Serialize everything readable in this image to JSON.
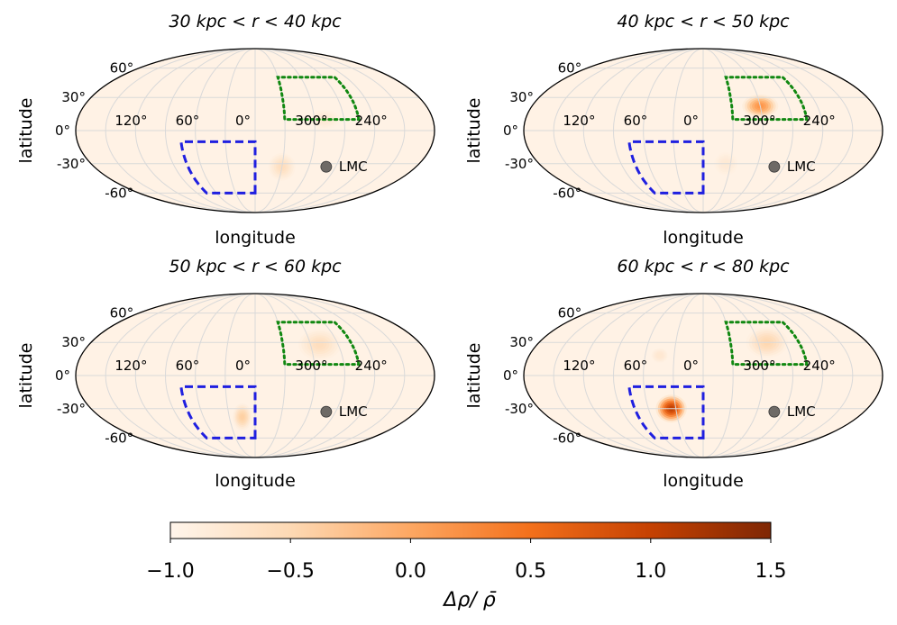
{
  "chart_data": {
    "type": "heatmap",
    "projection": "mollweide",
    "colormap": "Oranges",
    "panels": [
      {
        "title": "30 kpc < r < 40 kpc",
        "r_min_kpc": 30,
        "r_max_kpc": 40,
        "blobs": [
          {
            "lon": 330,
            "lat": -33,
            "value": -0.55,
            "spread_lon": 14,
            "spread_lat": 12
          },
          {
            "lon": 290,
            "lat": 10,
            "value": -0.75,
            "spread_lon": 15,
            "spread_lat": 8
          }
        ]
      },
      {
        "title": "40 kpc < r < 50 kpc",
        "r_min_kpc": 40,
        "r_max_kpc": 50,
        "blobs": [
          {
            "lon": 300,
            "lat": 22,
            "value": 0.25,
            "spread_lon": 18,
            "spread_lat": 10
          },
          {
            "lon": 335,
            "lat": -30,
            "value": -0.75,
            "spread_lon": 12,
            "spread_lat": 10
          }
        ]
      },
      {
        "title": "50 kpc < r < 60 kpc",
        "r_min_kpc": 50,
        "r_max_kpc": 60,
        "blobs": [
          {
            "lon": 15,
            "lat": -38,
            "value": -0.35,
            "spread_lon": 10,
            "spread_lat": 12
          },
          {
            "lon": 290,
            "lat": 28,
            "value": -0.55,
            "spread_lon": 22,
            "spread_lat": 14
          }
        ]
      },
      {
        "title": "60 kpc < r < 80 kpc",
        "r_min_kpc": 60,
        "r_max_kpc": 80,
        "blobs": [
          {
            "lon": 35,
            "lat": -30,
            "value": 1.15,
            "spread_lon": 16,
            "spread_lat": 12
          },
          {
            "lon": 290,
            "lat": 30,
            "value": -0.45,
            "spread_lon": 22,
            "spread_lat": 14
          },
          {
            "lon": 45,
            "lat": 18,
            "value": -0.7,
            "spread_lon": 8,
            "spread_lat": 6
          }
        ]
      }
    ],
    "background_value": -0.93,
    "xlabel": "longitude",
    "ylabel": "latitude",
    "x_ticks": [
      "120°",
      "60°",
      "0°",
      "300°",
      "240°"
    ],
    "x_tick_values": [
      120,
      60,
      0,
      300,
      240
    ],
    "y_ticks": [
      "60°",
      "30°",
      "0°",
      "-30°",
      "-60°"
    ],
    "y_tick_values": [
      60,
      30,
      0,
      -30,
      -60
    ],
    "regions": [
      {
        "name": "blue-dashed-region",
        "color": "#1f1fe0",
        "style": "dashed",
        "lon_range": [
          0,
          75
        ],
        "lat_range": [
          -60,
          -10
        ]
      },
      {
        "name": "green-dotted-region",
        "color": "#118811",
        "style": "dotted",
        "lon_range": [
          255,
          330
        ],
        "lat_range": [
          10,
          50
        ]
      }
    ],
    "marker": {
      "label": "LMC",
      "lon": 280.5,
      "lat": -32.9,
      "color": "#6e6a66"
    },
    "colorbar": {
      "label": "Δρ/ ρ̄",
      "range": [
        -1.0,
        1.5
      ],
      "ticks": [
        "−1.0",
        "−0.5",
        "0.0",
        "0.5",
        "1.0",
        "1.5"
      ],
      "tick_values": [
        -1.0,
        -0.5,
        0.0,
        0.5,
        1.0,
        1.5
      ]
    }
  }
}
